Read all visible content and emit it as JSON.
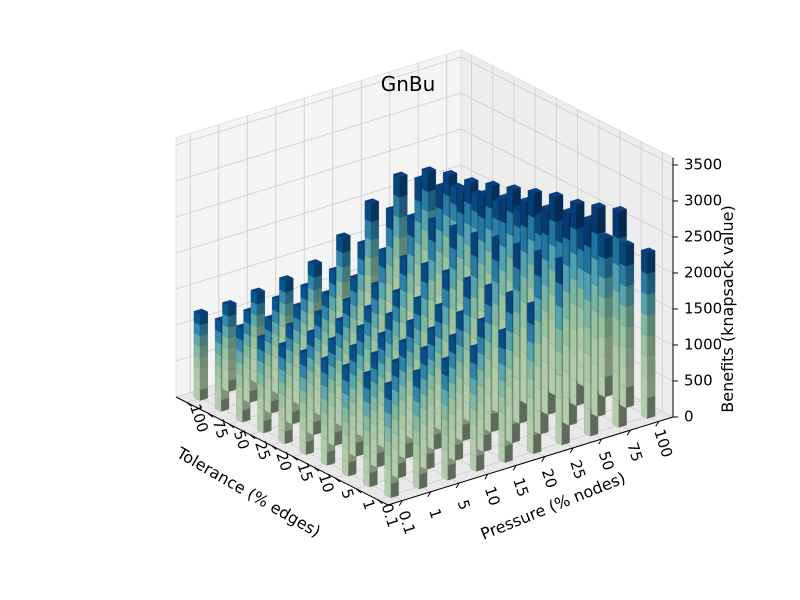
{
  "chart_data": {
    "type": "bar3d",
    "title": "GnBu",
    "colormap": "GnBu",
    "xlabel": "Tolerance (% edges)",
    "ylabel": "Pressure (% nodes)",
    "zlabel": "Benefits (knapsack value)",
    "x_categories": [
      "0.1",
      "1",
      "5",
      "10",
      "15",
      "20",
      "25",
      "50",
      "75",
      "100"
    ],
    "y_categories": [
      "0.1",
      "1",
      "5",
      "10",
      "15",
      "20",
      "25",
      "50",
      "75",
      "100"
    ],
    "z_ticks": [
      "0",
      "500",
      "1000",
      "1500",
      "2000",
      "2500",
      "3000",
      "3500"
    ],
    "zlim": [
      0,
      3600
    ],
    "grid": true,
    "values": [
      [
        1550,
        1600,
        1650,
        1700,
        1800,
        2050,
        2550,
        3000,
        3000,
        2300
      ],
      [
        1550,
        1600,
        1650,
        1700,
        1800,
        2050,
        2500,
        2950,
        2900,
        2250
      ],
      [
        1500,
        1550,
        1600,
        1650,
        1750,
        2000,
        2450,
        2850,
        2800,
        2200
      ],
      [
        1450,
        1500,
        1550,
        1600,
        1700,
        1950,
        2400,
        2800,
        2750,
        2150
      ],
      [
        1400,
        1450,
        1500,
        1550,
        1650,
        1900,
        2300,
        2700,
        2650,
        2100
      ],
      [
        1350,
        1400,
        1450,
        1500,
        1600,
        1850,
        2250,
        2600,
        2550,
        2050
      ],
      [
        1300,
        1350,
        1400,
        1450,
        1550,
        1800,
        2200,
        2500,
        2450,
        2000
      ],
      [
        1300,
        1300,
        1350,
        1400,
        1500,
        1750,
        2100,
        2400,
        2350,
        1950
      ],
      [
        1250,
        1250,
        1300,
        1350,
        1450,
        1700,
        2050,
        2350,
        2300,
        1900
      ],
      [
        1200,
        1200,
        1250,
        1300,
        1400,
        1650,
        2000,
        2250,
        2200,
        1850
      ]
    ]
  }
}
